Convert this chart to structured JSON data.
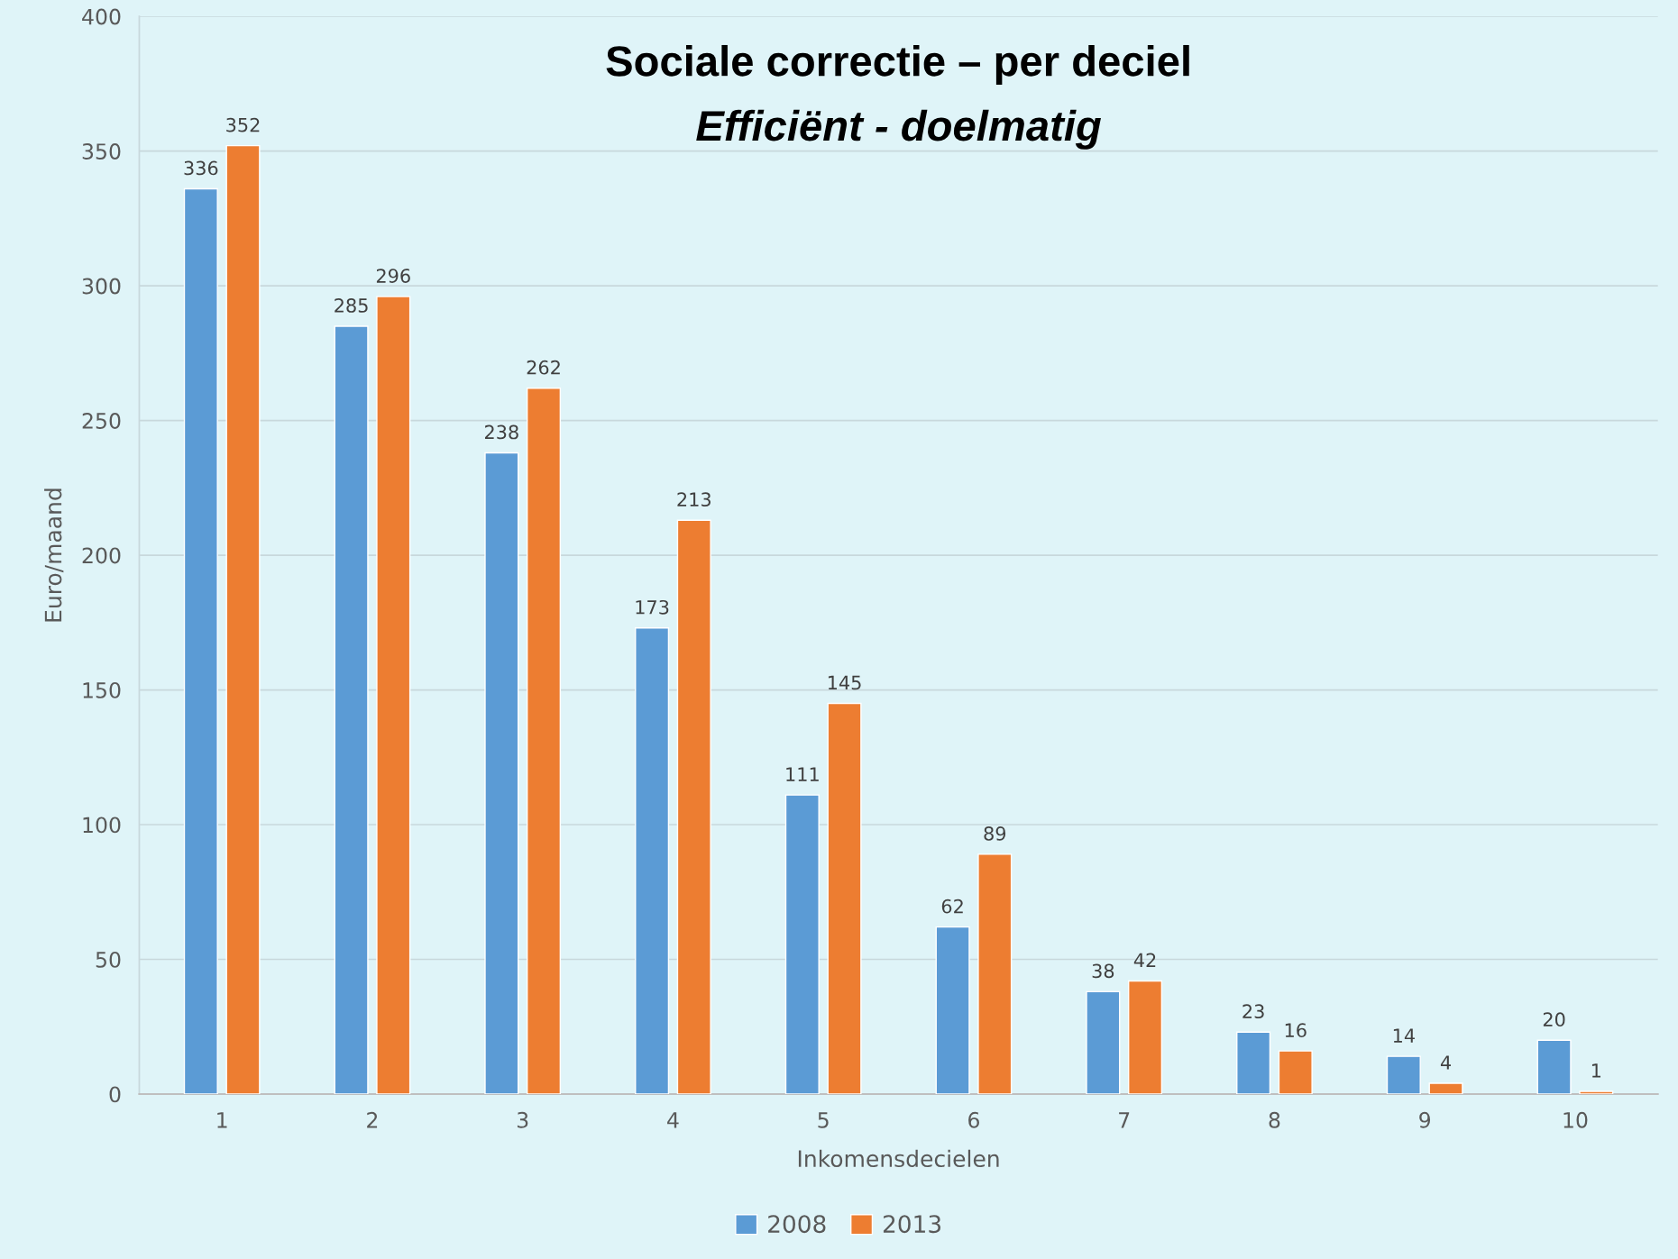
{
  "chart_data": {
    "type": "bar",
    "title": "Sociale correctie – per deciel",
    "subtitle": "Efficiënt - doelmatig",
    "xlabel": "Inkomensdecielen",
    "ylabel": "Euro/maand",
    "categories": [
      "1",
      "2",
      "3",
      "4",
      "5",
      "6",
      "7",
      "8",
      "9",
      "10"
    ],
    "series": [
      {
        "name": "2008",
        "color": "#5b9bd5",
        "values": [
          336,
          285,
          238,
          173,
          111,
          62,
          38,
          23,
          14,
          20
        ]
      },
      {
        "name": "2013",
        "color": "#ed7d31",
        "values": [
          352,
          296,
          262,
          213,
          145,
          89,
          42,
          16,
          4,
          1
        ]
      }
    ],
    "ylim": [
      0,
      400
    ],
    "yticks": [
      0,
      50,
      100,
      150,
      200,
      250,
      300,
      350,
      400
    ],
    "grid": "y",
    "legend": "bottom",
    "data_labels": true
  }
}
